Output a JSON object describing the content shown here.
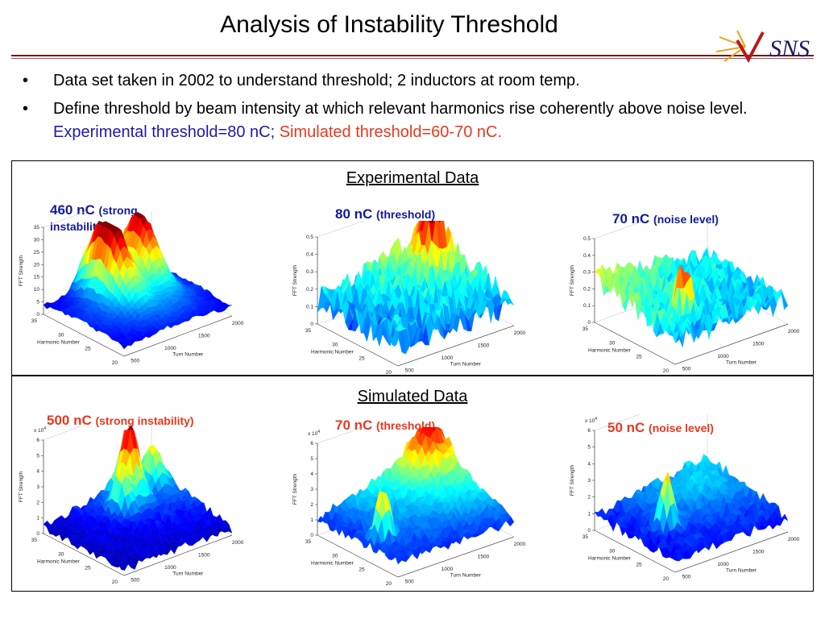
{
  "slide": {
    "title": "Analysis of Instability Threshold",
    "logo_text": "SNS",
    "bullet1": "Data set taken in 2002 to understand threshold; 2 inductors at room temp.",
    "bullet2_plain": "Define threshold by beam intensity at which relevant harmonics rise coherently above noise level.",
    "bullet2_blue": "Experimental threshold=80 nC;",
    "bullet2_red": "Simulated threshold=60-70 nC."
  },
  "experimental": {
    "heading": "Experimental Data",
    "plots": [
      {
        "value": "460 nC",
        "note": "(strong instability)"
      },
      {
        "value": "80 nC",
        "note": "(threshold)"
      },
      {
        "value": "70 nC",
        "note": "(noise level)"
      }
    ]
  },
  "simulated": {
    "heading": "Simulated Data",
    "plots": [
      {
        "value": "500 nC",
        "note": "(strong instability)"
      },
      {
        "value": "70 nC",
        "note": "(threshold)"
      },
      {
        "value": "50 nC",
        "note": "(noise level)"
      }
    ]
  },
  "axes": {
    "z_label": "FFT Strength",
    "x_label": "Harmonic Number",
    "y_label": "Turn Number",
    "x_ticks": [
      "35",
      "30",
      "25",
      "20"
    ],
    "y_ticks": [
      "500",
      "1000",
      "1500",
      "2000"
    ],
    "sci_exponent": "x 10",
    "exp": "4"
  },
  "z_ticks": {
    "exp1": [
      "0",
      "5",
      "10",
      "15",
      "20",
      "25",
      "30",
      "35"
    ],
    "exp2": [
      "0",
      "0.1",
      "0.2",
      "0.3",
      "0.4",
      "0.5"
    ],
    "exp3": [
      "0",
      "0.1",
      "0.2",
      "0.3",
      "0.4",
      "0.5"
    ],
    "sim": [
      "0",
      "1",
      "2",
      "3",
      "4",
      "5",
      "6"
    ]
  },
  "colors": {
    "title_rule": "#6b1a1a",
    "blue_text": "#1a1ab0",
    "red_text": "#e8381c",
    "navy_label": "#111a9a"
  }
}
